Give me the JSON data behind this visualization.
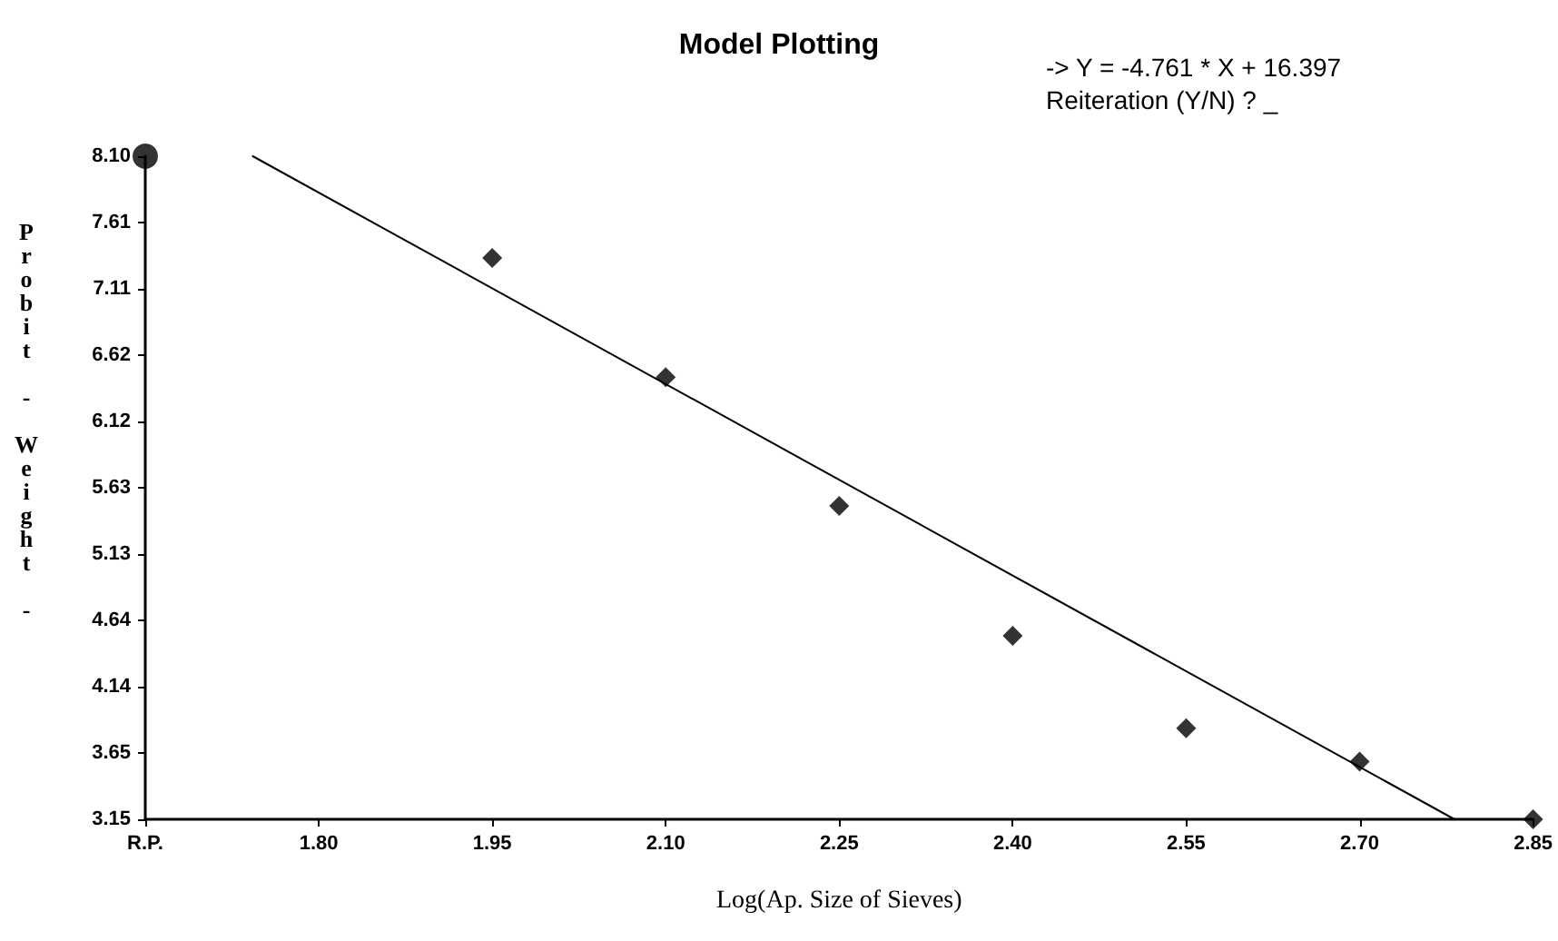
{
  "chart_data": {
    "type": "scatter",
    "title": "Model Plotting",
    "xlabel": "Log(Ap. Size of Sieves)",
    "ylabel": "Probit - Weight -",
    "annotations": [
      "-> Y = -4.761 * X + 16.397",
      "Reiteration (Y/N) ? _"
    ],
    "xlim": [
      1.65,
      2.85
    ],
    "xticks": [
      {
        "value": 1.65,
        "label": "R.P."
      },
      {
        "value": 1.8,
        "label": "1.80"
      },
      {
        "value": 1.95,
        "label": "1.95"
      },
      {
        "value": 2.1,
        "label": "2.10"
      },
      {
        "value": 2.25,
        "label": "2.25"
      },
      {
        "value": 2.4,
        "label": "2.40"
      },
      {
        "value": 2.55,
        "label": "2.55"
      },
      {
        "value": 2.7,
        "label": "2.70"
      },
      {
        "value": 2.85,
        "label": "2.85"
      }
    ],
    "ylim": [
      3.15,
      8.1
    ],
    "yticks": [
      {
        "value": 3.15,
        "label": "3.15"
      },
      {
        "value": 3.645,
        "label": "3.65"
      },
      {
        "value": 4.14,
        "label": "4.14"
      },
      {
        "value": 4.635,
        "label": "4.64"
      },
      {
        "value": 5.13,
        "label": "5.13"
      },
      {
        "value": 5.625,
        "label": "5.63"
      },
      {
        "value": 6.12,
        "label": "6.12"
      },
      {
        "value": 6.615,
        "label": "6.62"
      },
      {
        "value": 7.11,
        "label": "7.11"
      },
      {
        "value": 7.605,
        "label": "7.61"
      },
      {
        "value": 8.1,
        "label": "8.10"
      }
    ],
    "grid": false,
    "series": [
      {
        "marker": "diamond",
        "color": "#000000",
        "x": [
          1.95,
          2.1,
          2.25,
          2.4,
          2.55,
          2.7
        ],
        "values": [
          7.34,
          6.45,
          5.49,
          4.52,
          3.83,
          3.58
        ]
      },
      {
        "marker": "circle",
        "color": "#000000",
        "x": [
          1.65
        ],
        "values": [
          8.1
        ]
      },
      {
        "marker": "diamond",
        "color": "#000000",
        "x": [
          2.85
        ],
        "values": [
          3.15
        ]
      },
      {
        "type": "line",
        "marker": "none",
        "line_style": "solid",
        "color": "#000000",
        "x": [
          1.743,
          2.782
        ],
        "values": [
          8.1,
          3.15
        ]
      }
    ]
  }
}
